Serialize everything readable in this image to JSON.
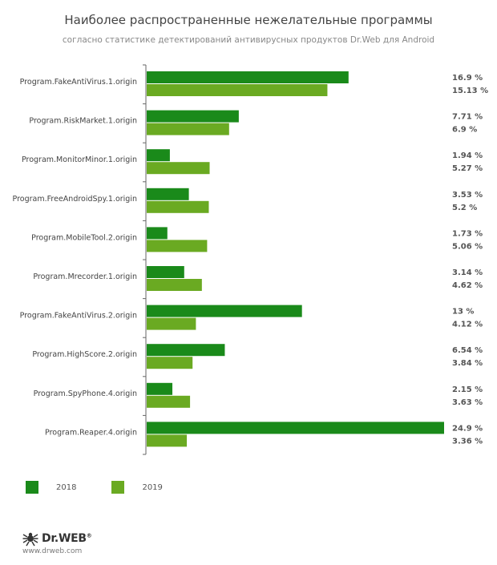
{
  "chart_data": {
    "type": "bar",
    "orientation": "horizontal",
    "title": "Наиболее распространенные нежелательные программы",
    "subtitle": "согласно статистике детектирований антивирусных продуктов Dr.Web для Android",
    "categories": [
      "Program.FakeAntiVirus.1.origin",
      "Program.RiskMarket.1.origin",
      "Program.MonitorMinor.1.origin",
      "Program.FreeAndroidSpy.1.origin",
      "Program.MobileTool.2.origin",
      "Program.Mrecorder.1.origin",
      "Program.FakeAntiVirus.2.origin",
      "Program.HighScore.2.origin",
      "Program.SpyPhone.4.origin",
      "Program.Reaper.4.origin"
    ],
    "series": [
      {
        "name": "2018",
        "color": "#1a8a1a",
        "values": [
          16.9,
          7.71,
          1.94,
          3.53,
          1.73,
          3.14,
          13,
          6.54,
          2.15,
          24.9
        ],
        "labels": [
          "16.9 %",
          "7.71 %",
          "1.94 %",
          "3.53 %",
          "1.73 %",
          "3.14 %",
          "13 %",
          "6.54 %",
          "2.15 %",
          "24.9 %"
        ]
      },
      {
        "name": "2019",
        "color": "#6aaa22",
        "values": [
          15.13,
          6.9,
          5.27,
          5.2,
          5.06,
          4.62,
          4.12,
          3.84,
          3.63,
          3.36
        ],
        "labels": [
          "15.13 %",
          "6.9 %",
          "5.27 %",
          "5.2 %",
          "5.06 %",
          "4.62 %",
          "4.12 %",
          "3.84 %",
          "3.63 %",
          "3.36 %"
        ]
      }
    ],
    "xlim": [
      0,
      24.9
    ],
    "grid": false,
    "legend_position": "bottom-left"
  },
  "footer": {
    "logo_text": "Dr.WEB",
    "logo_mark": "®",
    "url": "www.drweb.com"
  }
}
